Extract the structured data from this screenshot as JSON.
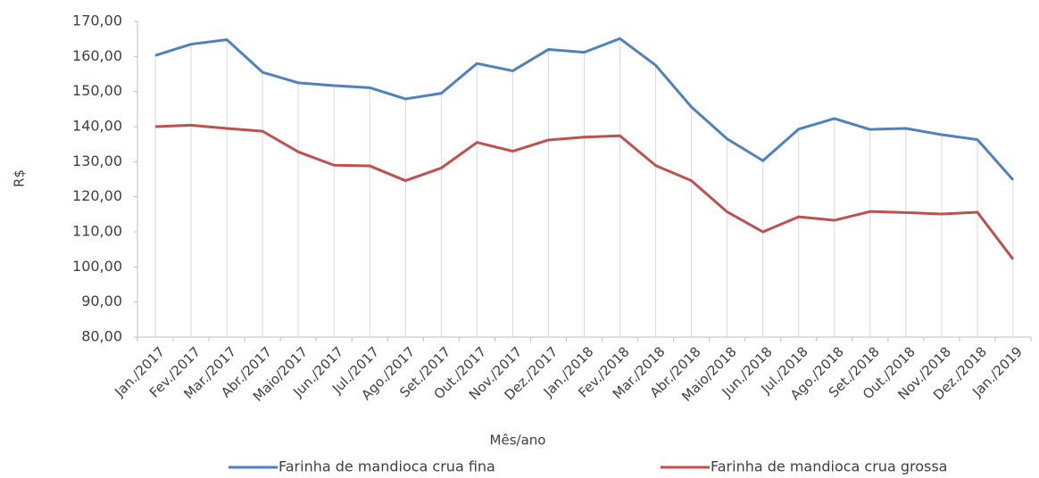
{
  "chart_data": {
    "type": "line",
    "x_label": "Mês/ano",
    "y_label": "R$",
    "categories": [
      "Jan./2017",
      "Fev./2017",
      "Mar./2017",
      "Abr./2017",
      "Maio/2017",
      "Jun./2017",
      "Jul./2017",
      "Ago./2017",
      "Set./2017",
      "Out./2017",
      "Nov./2017",
      "Dez./2017",
      "Jan./2018",
      "Fev./2018",
      "Mar./2018",
      "Abr./2018",
      "Maio/2018",
      "Jun./2018",
      "Jul./2018",
      "Ago./2018",
      "Set./2018",
      "Out./2018",
      "Nov./2018",
      "Dez./2018",
      "Jan./2019"
    ],
    "series": [
      {
        "name": "Farinha de mandioca crua fina",
        "color": "#4f81bd",
        "values": [
          160.3,
          163.5,
          164.8,
          155.5,
          152.5,
          151.7,
          151.1,
          147.9,
          149.5,
          158,
          155.9,
          162,
          161.2,
          165.1,
          157.5,
          145.6,
          136.5,
          130.3,
          139.3,
          142.3,
          139.2,
          139.5,
          137.7,
          136.3,
          124.8
        ]
      },
      {
        "name": "Farinha de mandioca crua grossa",
        "color": "#c0504d",
        "values": [
          140,
          140.4,
          139.5,
          138.7,
          132.8,
          129,
          128.8,
          124.6,
          128.2,
          135.5,
          133,
          136.2,
          137,
          137.4,
          128.9,
          124.6,
          115.7,
          110,
          114.3,
          113.3,
          115.8,
          115.5,
          115.1,
          115.6,
          102.2
        ]
      }
    ],
    "ylim": [
      80,
      170
    ],
    "yticks": [
      {
        "value": 80,
        "label": "80,00"
      },
      {
        "value": 90,
        "label": "90,00"
      },
      {
        "value": 100,
        "label": "100,00"
      },
      {
        "value": 110,
        "label": "110,00"
      },
      {
        "value": 120,
        "label": "120,00"
      },
      {
        "value": 130,
        "label": "130,00"
      },
      {
        "value": 140,
        "label": "140,00"
      },
      {
        "value": 150,
        "label": "150,00"
      },
      {
        "value": 160,
        "label": "160,00"
      },
      {
        "value": 170,
        "label": "170,00"
      }
    ],
    "drop_lines": true,
    "legend": "bottom"
  }
}
